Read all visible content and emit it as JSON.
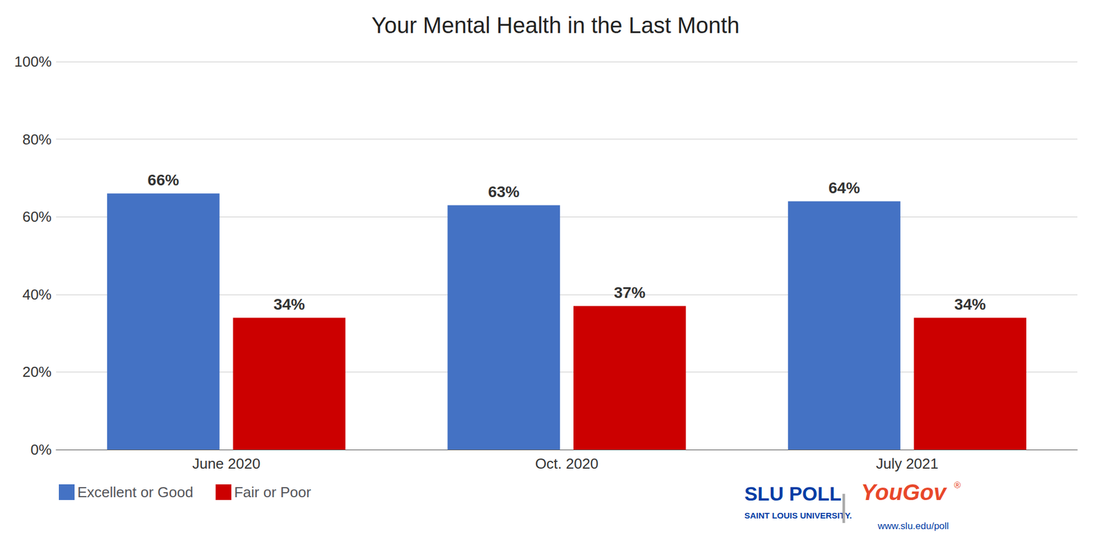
{
  "chart_data": {
    "type": "bar",
    "title": "Your Mental Health in the Last Month",
    "categories": [
      "June 2020",
      "Oct. 2020",
      "July 2021"
    ],
    "series": [
      {
        "name": "Excellent or Good",
        "color": "#4472C4",
        "values": [
          66,
          63,
          64
        ],
        "value_labels": [
          "66%",
          "63%",
          "64%"
        ]
      },
      {
        "name": "Fair or Poor",
        "color": "#CC0000",
        "values": [
          34,
          37,
          34
        ],
        "value_labels": [
          "34%",
          "37%",
          "34%"
        ]
      }
    ],
    "ylim": [
      0,
      100
    ],
    "yticks": [
      {
        "value": 0,
        "label": "0%"
      },
      {
        "value": 20,
        "label": "20%"
      },
      {
        "value": 40,
        "label": "40%"
      },
      {
        "value": 60,
        "label": "60%"
      },
      {
        "value": 80,
        "label": "80%"
      },
      {
        "value": 100,
        "label": "100%"
      }
    ],
    "grid": true,
    "legend": "lower left",
    "data_labels": true,
    "annotations": [
      {
        "text": "SLU POLL",
        "color": "#003DA5"
      },
      {
        "text": "SAINT LOUIS UNIVERSITY.",
        "color": "#003DA5"
      },
      {
        "text": "|",
        "color": "#AAAAAA"
      },
      {
        "text": "YouGov",
        "color": "#E8472A"
      },
      {
        "text": "®",
        "color": "#E8472A"
      },
      {
        "text": "www.slu.edu/poll",
        "color": "#003DA5"
      }
    ]
  }
}
